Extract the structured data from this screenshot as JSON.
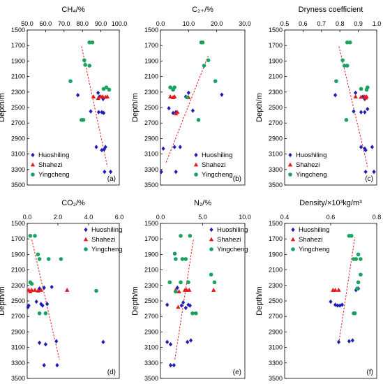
{
  "y_axis_label": "Depth/m",
  "legend_labels": [
    "Huoshiling",
    "Shahezi",
    "Yingcheng"
  ],
  "colors": {
    "Huoshiling": "#1f1fb4",
    "Shahezi": "#e41a1c",
    "Yingcheng": "#1aa260",
    "trend": "#e41a1c",
    "axis": "#000000"
  },
  "chart_data": [
    {
      "type": "scatter",
      "title": "CH₄/%",
      "xlabel": "CH₄/%",
      "ylabel": "Depth/m",
      "panel_label": "(a)",
      "xlim": [
        50,
        100
      ],
      "ylim": [
        1500,
        3500
      ],
      "x_ticks": [
        "50.0",
        "60.0",
        "70.0",
        "80.0",
        "90.0",
        "100.0"
      ],
      "y_ticks": [
        "1500",
        "1700",
        "1900",
        "2100",
        "2300",
        "2500",
        "2700",
        "2900",
        "3100",
        "3300",
        "3500"
      ],
      "legend": [
        "Huoshiling",
        "Shahezi",
        "Yingcheng"
      ],
      "legend_position": "bottom-left",
      "trendline": [
        [
          79.5,
          1710
        ],
        [
          93.5,
          3260
        ]
      ],
      "series": [
        {
          "name": "Huoshiling",
          "marker": "diamond",
          "points": [
            [
              77.5,
              2340
            ],
            [
              84.5,
              2550
            ],
            [
              88.8,
              2560
            ],
            [
              90.5,
              2560
            ],
            [
              91.5,
              2570
            ],
            [
              88.5,
              2310
            ],
            [
              89.2,
              2360
            ],
            [
              91.2,
              2390
            ],
            [
              87.5,
              3010
            ],
            [
              90.5,
              3050
            ],
            [
              91.8,
              3040
            ],
            [
              92.5,
              3010
            ],
            [
              92.0,
              3330
            ],
            [
              95.3,
              3330
            ]
          ]
        },
        {
          "name": "Shahezi",
          "marker": "triangle",
          "points": [
            [
              86.0,
              2360
            ],
            [
              88.5,
              2380
            ],
            [
              90.0,
              2360
            ],
            [
              91.0,
              2360
            ],
            [
              92.5,
              2365
            ],
            [
              93.5,
              2360
            ]
          ]
        },
        {
          "name": "Yingcheng",
          "marker": "circle",
          "points": [
            [
              83.8,
              1660
            ],
            [
              85.4,
              1660
            ],
            [
              81.0,
              1890
            ],
            [
              81.5,
              1950
            ],
            [
              83.8,
              1960
            ],
            [
              73.5,
              2160
            ],
            [
              93.0,
              2240
            ],
            [
              94.5,
              2270
            ],
            [
              91.5,
              2260
            ],
            [
              79.5,
              2660
            ],
            [
              80.5,
              2660
            ]
          ]
        }
      ]
    },
    {
      "type": "scatter",
      "title": "C₂₊/%",
      "xlabel": "C₂₊/%",
      "ylabel": "Depth/m",
      "panel_label": "(b)",
      "xlim": [
        0,
        30
      ],
      "ylim": [
        1500,
        3500
      ],
      "x_ticks": [
        "0.0",
        "10.0",
        "20.0",
        "30.0"
      ],
      "y_ticks": [
        "1500",
        "1700",
        "1900",
        "2100",
        "2300",
        "2500",
        "2700",
        "2900",
        "3100",
        "3300",
        "3500"
      ],
      "legend": [
        "Huoshiling",
        "Shahezi",
        "Yingcheng"
      ],
      "legend_position": "bottom-right",
      "trendline": [
        [
          2.0,
          3210
        ],
        [
          17.0,
          1830
        ]
      ],
      "series": [
        {
          "name": "Huoshiling",
          "marker": "diamond",
          "points": [
            [
              21.8,
              2335
            ],
            [
              3.0,
              2510
            ],
            [
              4.5,
              2570
            ],
            [
              5.5,
              2560
            ],
            [
              11.5,
              2540
            ],
            [
              10.0,
              2310
            ],
            [
              9.0,
              2360
            ],
            [
              7.0,
              3010
            ],
            [
              1.0,
              3030
            ],
            [
              5.0,
              3010
            ],
            [
              0.3,
              3330
            ],
            [
              5.5,
              3330
            ]
          ]
        },
        {
          "name": "Shahezi",
          "marker": "triangle",
          "points": [
            [
              3.5,
              2360
            ],
            [
              4.5,
              2370
            ],
            [
              5.0,
              2360
            ],
            [
              6.0,
              2560
            ],
            [
              5.5,
              2580
            ],
            [
              10.0,
              2370
            ]
          ]
        },
        {
          "name": "Yingcheng",
          "marker": "circle",
          "points": [
            [
              14.5,
              1660
            ],
            [
              15.0,
              1660
            ],
            [
              17.0,
              1890
            ],
            [
              15.5,
              1960
            ],
            [
              19.5,
              2160
            ],
            [
              3.5,
              2240
            ],
            [
              4.5,
              2270
            ],
            [
              5.0,
              2240
            ],
            [
              9.5,
              2370
            ],
            [
              13.5,
              2660
            ]
          ]
        }
      ]
    },
    {
      "type": "scatter",
      "title": "Dryness coefficient",
      "xlabel": "Dryness coefficient",
      "ylabel": "Depth/m",
      "panel_label": "(c)",
      "xlim": [
        0.5,
        1.0
      ],
      "ylim": [
        1500,
        3500
      ],
      "x_ticks": [
        "0.5",
        "0.6",
        "0.7",
        "0.8",
        "0.9",
        "1.0"
      ],
      "y_ticks": [
        "1500",
        "1700",
        "1900",
        "2100",
        "2300",
        "2500",
        "2700",
        "2900",
        "3100",
        "3300",
        "3500"
      ],
      "legend": [
        "Huoshiling",
        "Shahezi",
        "Yingcheng"
      ],
      "legend_position": "bottom-left",
      "trendline": [
        [
          0.795,
          1710
        ],
        [
          0.95,
          3260
        ]
      ],
      "series": [
        {
          "name": "Huoshiling",
          "marker": "diamond",
          "points": [
            [
              0.775,
              2340
            ],
            [
              0.875,
              2550
            ],
            [
              0.915,
              2560
            ],
            [
              0.935,
              2560
            ],
            [
              0.95,
              2520
            ],
            [
              0.885,
              2310
            ],
            [
              0.925,
              2360
            ],
            [
              0.935,
              2390
            ],
            [
              0.915,
              3010
            ],
            [
              0.935,
              3030
            ],
            [
              0.94,
              3050
            ],
            [
              0.975,
              3010
            ],
            [
              0.94,
              3330
            ],
            [
              0.985,
              3330
            ]
          ]
        },
        {
          "name": "Shahezi",
          "marker": "triangle",
          "points": [
            [
              0.885,
              2360
            ],
            [
              0.915,
              2365
            ],
            [
              0.935,
              2360
            ],
            [
              0.945,
              2360
            ],
            [
              0.94,
              2375
            ]
          ]
        },
        {
          "name": "Yingcheng",
          "marker": "circle",
          "points": [
            [
              0.84,
              1660
            ],
            [
              0.855,
              1660
            ],
            [
              0.815,
              1890
            ],
            [
              0.825,
              1960
            ],
            [
              0.84,
              1960
            ],
            [
              0.78,
              2160
            ],
            [
              0.95,
              2240
            ],
            [
              0.945,
              2270
            ],
            [
              0.915,
              2260
            ],
            [
              0.835,
              2660
            ]
          ]
        }
      ]
    },
    {
      "type": "scatter",
      "title": "CO₂/%",
      "xlabel": "CO₂/%",
      "ylabel": "Depth/m",
      "panel_label": "(d)",
      "xlim": [
        0,
        6
      ],
      "ylim": [
        1500,
        3500
      ],
      "x_ticks": [
        "0.0",
        "2.0",
        "4.0",
        "6.0"
      ],
      "y_ticks": [
        "1500",
        "1700",
        "1900",
        "2100",
        "2300",
        "2500",
        "2700",
        "2900",
        "3100",
        "3300",
        "3500"
      ],
      "legend": [
        "Huoshiling",
        "Shahezi",
        "Yingcheng"
      ],
      "legend_position": "top-right",
      "trendline": [
        [
          0.3,
          1710
        ],
        [
          2.1,
          3260
        ]
      ],
      "series": [
        {
          "name": "Huoshiling",
          "marker": "diamond",
          "points": [
            [
              0.1,
              2560
            ],
            [
              0.05,
              2580
            ],
            [
              0.6,
              2510
            ],
            [
              1.3,
              2540
            ],
            [
              1.6,
              2320
            ],
            [
              1.1,
              2330
            ],
            [
              0.8,
              2340
            ],
            [
              1.0,
              2560
            ],
            [
              0.9,
              2540
            ],
            [
              0.8,
              3040
            ],
            [
              1.2,
              3060
            ],
            [
              1.9,
              3020
            ],
            [
              4.95,
              3030
            ],
            [
              1.1,
              3330
            ],
            [
              1.95,
              3330
            ]
          ]
        },
        {
          "name": "Shahezi",
          "marker": "triangle",
          "points": [
            [
              0.1,
              2360
            ],
            [
              0.2,
              2380
            ],
            [
              0.3,
              2360
            ],
            [
              0.5,
              2360
            ],
            [
              0.7,
              2370
            ],
            [
              0.9,
              2360
            ],
            [
              2.6,
              2360
            ]
          ]
        },
        {
          "name": "Yingcheng",
          "marker": "circle",
          "points": [
            [
              0.2,
              1660
            ],
            [
              0.5,
              1660
            ],
            [
              0.7,
              1900
            ],
            [
              0.8,
              1960
            ],
            [
              1.4,
              1960
            ],
            [
              2.2,
              1960
            ],
            [
              0.2,
              2260
            ],
            [
              0.3,
              2280
            ],
            [
              0.8,
              2660
            ],
            [
              1.2,
              2660
            ],
            [
              4.5,
              2370
            ]
          ]
        }
      ]
    },
    {
      "type": "scatter",
      "title": "N₂/%",
      "xlabel": "N₂/%",
      "ylabel": "Depth/m",
      "panel_label": "(e)",
      "xlim": [
        0,
        10
      ],
      "ylim": [
        1500,
        3500
      ],
      "x_ticks": [
        "0.0",
        "5.0",
        "10.0"
      ],
      "y_ticks": [
        "1500",
        "1700",
        "1900",
        "2100",
        "2300",
        "2500",
        "2700",
        "2900",
        "3100",
        "3300",
        "3500"
      ],
      "legend": [
        "Huoshiling",
        "Shahezi",
        "Yingcheng"
      ],
      "legend_position": "top-right",
      "trendline": [
        [
          3.9,
          1710
        ],
        [
          1.7,
          3260
        ]
      ],
      "series": [
        {
          "name": "Huoshiling",
          "marker": "diamond",
          "points": [
            [
              0.8,
              2550
            ],
            [
              2.0,
              2330
            ],
            [
              2.7,
              2520
            ],
            [
              2.5,
              2560
            ],
            [
              3.5,
              2560
            ],
            [
              3.3,
              2550
            ],
            [
              3.0,
              2590
            ],
            [
              0.8,
              3030
            ],
            [
              1.2,
              3060
            ],
            [
              3.6,
              3010
            ],
            [
              3.2,
              3030
            ],
            [
              1.2,
              3330
            ],
            [
              1.6,
              3330
            ]
          ]
        },
        {
          "name": "Shahezi",
          "marker": "triangle",
          "points": [
            [
              1.8,
              2360
            ],
            [
              2.2,
              2380
            ],
            [
              2.9,
              2360
            ],
            [
              3.1,
              2360
            ],
            [
              3.4,
              2360
            ],
            [
              6.3,
              2360
            ],
            [
              2.1,
              2580
            ]
          ]
        },
        {
          "name": "Yingcheng",
          "marker": "circle",
          "points": [
            [
              2.4,
              1660
            ],
            [
              3.5,
              1660
            ],
            [
              1.7,
              1890
            ],
            [
              1.8,
              1960
            ],
            [
              2.6,
              1960
            ],
            [
              3.0,
              1960
            ],
            [
              1.1,
              2260
            ],
            [
              2.4,
              2260
            ],
            [
              3.3,
              2260
            ],
            [
              6.0,
              2160
            ],
            [
              6.4,
              2260
            ],
            [
              1.8,
              2380
            ],
            [
              3.8,
              2660
            ],
            [
              4.2,
              2660
            ]
          ]
        }
      ]
    },
    {
      "type": "scatter",
      "title": "Density/×10³kg/m³",
      "xlabel": "Density/×10³kg/m³",
      "ylabel": "Depth/m",
      "panel_label": "(f)",
      "xlim": [
        0.4,
        0.8
      ],
      "ylim": [
        1500,
        3500
      ],
      "x_ticks": [
        "0.4",
        "0.6",
        "0.8"
      ],
      "y_ticks": [
        "1500",
        "1700",
        "1900",
        "2100",
        "2300",
        "2500",
        "2700",
        "2900",
        "3100",
        "3300",
        "3500"
      ],
      "legend": [
        "Huoshiling",
        "Shahezi",
        "Yingcheng"
      ],
      "legend_position": "top-left",
      "trendline": [
        [
          0.635,
          3050
        ],
        [
          0.705,
          1680
        ]
      ],
      "series": [
        {
          "name": "Huoshiling",
          "marker": "diamond",
          "points": [
            [
              0.6,
              2510
            ],
            [
              0.62,
              2550
            ],
            [
              0.63,
              2560
            ],
            [
              0.64,
              2560
            ],
            [
              0.65,
              2550
            ],
            [
              0.72,
              2340
            ],
            [
              0.71,
              2360
            ],
            [
              0.635,
              3030
            ],
            [
              0.68,
              3020
            ],
            [
              0.695,
              3010
            ]
          ]
        },
        {
          "name": "Shahezi",
          "marker": "triangle",
          "points": [
            [
              0.61,
              2360
            ],
            [
              0.62,
              2360
            ],
            [
              0.635,
              2360
            ]
          ]
        },
        {
          "name": "Yingcheng",
          "marker": "circle",
          "points": [
            [
              0.68,
              1660
            ],
            [
              0.69,
              1660
            ],
            [
              0.72,
              1900
            ],
            [
              0.7,
              1960
            ],
            [
              0.71,
              1960
            ],
            [
              0.73,
              1960
            ],
            [
              0.73,
              2160
            ],
            [
              0.72,
              2260
            ],
            [
              0.715,
              2340
            ],
            [
              0.7,
              2660
            ],
            [
              0.705,
              2660
            ]
          ]
        }
      ]
    }
  ]
}
